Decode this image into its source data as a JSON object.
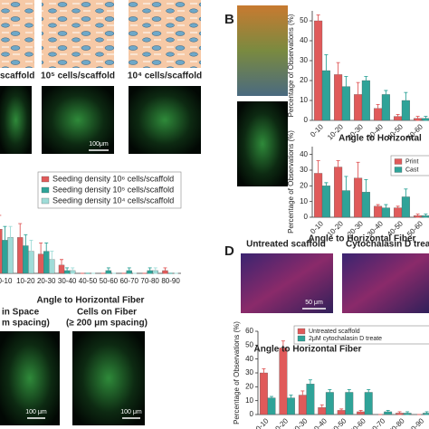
{
  "figure": {
    "panel_labels": [
      "B",
      "D"
    ],
    "seeding_labels": [
      "scaffold",
      "10⁵ cells/scaffold",
      "10⁴ cells/scaffold"
    ],
    "scale_bars": [
      "100μm",
      "100 μm",
      "100 μm",
      "50 μm"
    ],
    "spacing_labels": [
      {
        "title": "in Space",
        "sub": "m spacing)"
      },
      {
        "title": "Cells on Fiber",
        "sub": "(≥ 200 μm spacing)"
      }
    ],
    "treatment_labels": [
      "Untreated scaffold",
      "Cytochalasin D treate"
    ]
  },
  "chart_data": [
    {
      "type": "bar",
      "x_label": "Angle to Horizontal Fiber",
      "categories": [
        "0-10",
        "10-20",
        "20-30",
        "30-40",
        "40-50",
        "50-60",
        "60-70",
        "70-80",
        "80-90"
      ],
      "ylim": [
        0,
        40
      ],
      "series": [
        {
          "name": "Seeding density 10⁶ cells/scaffold",
          "color": "#e05a5a",
          "values": [
            16,
            13,
            7,
            3,
            0,
            0,
            0,
            0,
            1
          ],
          "errors": [
            5,
            5,
            4,
            2,
            0,
            0,
            0,
            0,
            1
          ]
        },
        {
          "name": "Seeding density 10⁵ cells/scaffold",
          "color": "#2fa398",
          "values": [
            12,
            10,
            8,
            1,
            0,
            1,
            1,
            1,
            0
          ],
          "errors": [
            5,
            4,
            3,
            1,
            0,
            1,
            1,
            1,
            0
          ]
        },
        {
          "name": "Seeding density 10⁴ cells/scaffold",
          "color": "#9fdcd8",
          "values": [
            13,
            8,
            5,
            1,
            0,
            0,
            0,
            1,
            0
          ],
          "errors": [
            4,
            4,
            3,
            1,
            0,
            0,
            0,
            1,
            0
          ]
        }
      ]
    },
    {
      "type": "bar",
      "x_label": "Angle to Horizontal",
      "y_label": "Percentage of Observations (%)",
      "categories": [
        "0-10",
        "10-20",
        "20-30",
        "30-40",
        "40-50",
        "50-60"
      ],
      "ylim": [
        0,
        55
      ],
      "yticks": [
        0,
        10,
        20,
        30,
        40,
        50
      ],
      "series": [
        {
          "color": "#e05a5a",
          "values": [
            50,
            23,
            13,
            6,
            2,
            1
          ],
          "errors": [
            3,
            6,
            6,
            2,
            1,
            1
          ]
        },
        {
          "color": "#2fa398",
          "values": [
            25,
            17,
            20,
            13,
            10,
            1
          ],
          "errors": [
            8,
            5,
            2,
            2,
            4,
            1
          ]
        }
      ]
    },
    {
      "type": "bar",
      "x_label": "Angle to Horizontal Fiber",
      "y_label": "Percentage of Observations (%)",
      "categories": [
        "0-10",
        "10-20",
        "20-30",
        "30-40",
        "40-50",
        "50-60"
      ],
      "ylim": [
        0,
        45
      ],
      "yticks": [
        0,
        10,
        20,
        30,
        40
      ],
      "series": [
        {
          "name": "Print",
          "color": "#e05a5a",
          "values": [
            28,
            32,
            25,
            7,
            6,
            1
          ],
          "errors": [
            8,
            4,
            10,
            1,
            1,
            1
          ]
        },
        {
          "name": "Cast",
          "color": "#2fa398",
          "values": [
            20,
            17,
            16,
            6,
            13,
            1
          ],
          "errors": [
            2,
            9,
            8,
            2,
            5,
            1
          ]
        }
      ]
    },
    {
      "type": "bar",
      "x_label": "Angle to Horizontal Fiber",
      "y_label": "Percentage of Observations (%)",
      "categories": [
        "0-10",
        "10-20",
        "20-30",
        "30-40",
        "40-50",
        "50-60",
        "60-70",
        "70-80",
        "80-90"
      ],
      "ylim": [
        0,
        60
      ],
      "yticks": [
        0,
        10,
        20,
        30,
        40,
        50,
        60
      ],
      "series": [
        {
          "name": "Untreated scaffold",
          "color": "#e05a5a",
          "values": [
            30,
            48,
            14,
            5,
            3,
            2,
            0,
            1,
            0
          ],
          "errors": [
            3,
            5,
            3,
            2,
            1,
            1,
            0,
            1,
            0
          ]
        },
        {
          "name": "2μM cytochalasin D treate",
          "color": "#2fa398",
          "values": [
            12,
            12,
            22,
            16,
            16,
            16,
            2,
            1,
            1
          ],
          "errors": [
            1,
            2,
            3,
            2,
            2,
            2,
            1,
            1,
            1
          ]
        }
      ]
    }
  ]
}
